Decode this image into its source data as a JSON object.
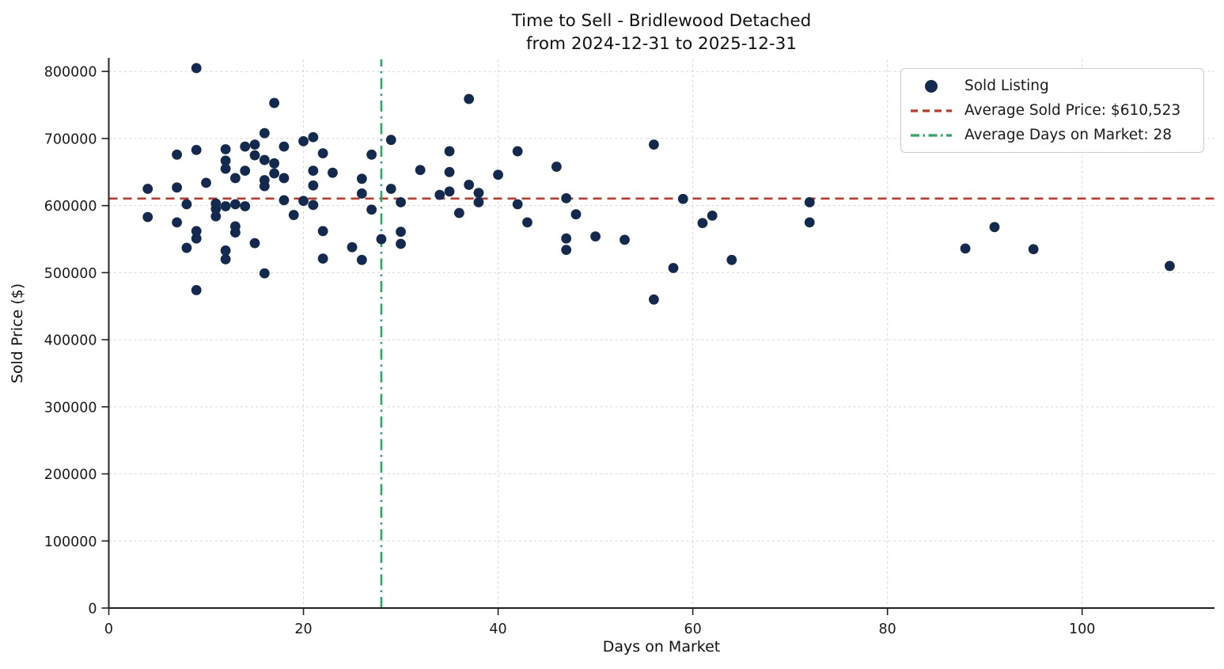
{
  "figure": {
    "title": "Time to Sell - Bridlewood Detached",
    "subtitle": "from 2024-12-31 to 2025-12-31"
  },
  "chart_data": {
    "type": "scatter",
    "title": "Time to Sell - Bridlewood Detached",
    "subtitle": "from 2024-12-31 to 2025-12-31",
    "xlabel": "Days on Market",
    "ylabel": "Sold Price ($)",
    "xlim": [
      0,
      113.6
    ],
    "ylim": [
      0,
      818000
    ],
    "x_ticks": [
      0,
      20,
      40,
      60,
      80,
      100
    ],
    "y_ticks": [
      0,
      100000,
      200000,
      300000,
      400000,
      500000,
      600000,
      700000,
      800000
    ],
    "grid": true,
    "colors": {
      "point": "#13294d",
      "avg_price_line": "#c0392b",
      "avg_days_line": "#2aa765",
      "gridline": "#d8d8d8",
      "spine": "#222222",
      "tick_text": "#1a1a1a"
    },
    "legend": {
      "position": "upper right",
      "entries": [
        {
          "marker": "dot",
          "color": "#13294d",
          "label": "Sold Listing"
        },
        {
          "marker": "dashed-line",
          "color": "#c0392b",
          "label": "Average Sold Price: $610,523"
        },
        {
          "marker": "dashdot-line",
          "color": "#2aa765",
          "label": "Average Days on Market: 28"
        }
      ]
    },
    "reference_lines": [
      {
        "name": "average-sold-price",
        "orientation": "horizontal",
        "value": 610523,
        "label": "Average Sold Price: $610,523",
        "color": "#c0392b",
        "style": "dashed"
      },
      {
        "name": "average-days-on-market",
        "orientation": "vertical",
        "value": 28,
        "label": "Average Days on Market: 28",
        "color": "#2aa765",
        "style": "dashdot"
      }
    ],
    "series": [
      {
        "name": "Sold Listing",
        "color": "#13294d",
        "points": [
          [
            4,
            625000
          ],
          [
            4,
            583000
          ],
          [
            7,
            676000
          ],
          [
            7,
            627000
          ],
          [
            7,
            575000
          ],
          [
            8,
            602000
          ],
          [
            8,
            537000
          ],
          [
            9,
            805000
          ],
          [
            9,
            683000
          ],
          [
            9,
            562000
          ],
          [
            9,
            551000
          ],
          [
            9,
            474000
          ],
          [
            10,
            634000
          ],
          [
            11,
            595000
          ],
          [
            11,
            603000
          ],
          [
            12,
            599000
          ],
          [
            13,
            602000
          ],
          [
            14,
            599000
          ],
          [
            11,
            584000
          ],
          [
            12,
            684000
          ],
          [
            12,
            667000
          ],
          [
            12,
            655000
          ],
          [
            13,
            641000
          ],
          [
            13,
            569000
          ],
          [
            13,
            560000
          ],
          [
            12,
            533000
          ],
          [
            12,
            520000
          ],
          [
            14,
            652000
          ],
          [
            14,
            688000
          ],
          [
            15,
            691000
          ],
          [
            15,
            675000
          ],
          [
            15,
            544000
          ],
          [
            16,
            708000
          ],
          [
            16,
            668000
          ],
          [
            17,
            663000
          ],
          [
            17,
            648000
          ],
          [
            18,
            641000
          ],
          [
            16,
            638000
          ],
          [
            16,
            629000
          ],
          [
            16,
            499000
          ],
          [
            17,
            753000
          ],
          [
            18,
            688000
          ],
          [
            18,
            608000
          ],
          [
            19,
            586000
          ],
          [
            20,
            696000
          ],
          [
            21,
            702000
          ],
          [
            22,
            678000
          ],
          [
            21,
            652000
          ],
          [
            21,
            630000
          ],
          [
            20,
            607000
          ],
          [
            21,
            601000
          ],
          [
            22,
            562000
          ],
          [
            22,
            521000
          ],
          [
            23,
            649000
          ],
          [
            25,
            538000
          ],
          [
            26,
            519000
          ],
          [
            26,
            640000
          ],
          [
            26,
            618000
          ],
          [
            27,
            676000
          ],
          [
            27,
            594000
          ],
          [
            28,
            550000
          ],
          [
            29,
            698000
          ],
          [
            29,
            625000
          ],
          [
            30,
            605000
          ],
          [
            30,
            561000
          ],
          [
            30,
            543000
          ],
          [
            32,
            653000
          ],
          [
            34,
            616000
          ],
          [
            35,
            681000
          ],
          [
            35,
            650000
          ],
          [
            35,
            621000
          ],
          [
            36,
            589000
          ],
          [
            37,
            759000
          ],
          [
            37,
            631000
          ],
          [
            38,
            619000
          ],
          [
            38,
            605000
          ],
          [
            40,
            646000
          ],
          [
            42,
            681000
          ],
          [
            42,
            602000
          ],
          [
            43,
            575000
          ],
          [
            46,
            658000
          ],
          [
            47,
            611000
          ],
          [
            48,
            587000
          ],
          [
            47,
            551000
          ],
          [
            47,
            534000
          ],
          [
            50,
            554000
          ],
          [
            53,
            549000
          ],
          [
            56,
            691000
          ],
          [
            56,
            460000
          ],
          [
            58,
            507000
          ],
          [
            59,
            610000
          ],
          [
            61,
            574000
          ],
          [
            62,
            585000
          ],
          [
            64,
            519000
          ],
          [
            72,
            605000
          ],
          [
            72,
            575000
          ],
          [
            88,
            536000
          ],
          [
            91,
            568000
          ],
          [
            95,
            535000
          ],
          [
            109,
            510000
          ]
        ]
      }
    ]
  }
}
